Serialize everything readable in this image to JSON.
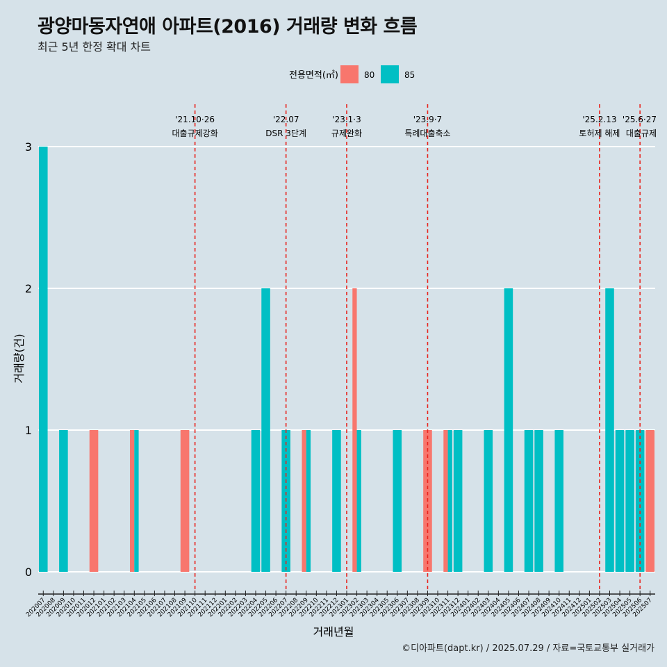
{
  "title": "광양마동자연애 아파트(2016) 거래량 변화 흐름",
  "subtitle": "최근 5년 한정 확대 차트",
  "caption": "©디아파트(dapt.kr) / 2025.07.29 / 자료=국토교통부 실거래가",
  "colors": {
    "80": "#f8766d",
    "85": "#00bfc4",
    "background": "#d6e2e9",
    "vline": "#e8251f"
  },
  "chart_data": {
    "type": "bar",
    "xlabel": "거래년월",
    "ylabel": "거래량(건)",
    "ylim": [
      0,
      3
    ],
    "yticks": [
      0,
      1,
      2,
      3
    ],
    "grid": true,
    "legend": {
      "title": "전용면적(㎡)",
      "position": "top",
      "entries": [
        "80",
        "85"
      ]
    },
    "categories": [
      "202007",
      "202008",
      "202009",
      "202010",
      "202011",
      "202012",
      "202101",
      "202102",
      "202103",
      "202104",
      "202105",
      "202106",
      "202107",
      "202108",
      "202109",
      "202110",
      "202111",
      "202112",
      "202201",
      "202202",
      "202203",
      "202204",
      "202205",
      "202206",
      "202207",
      "202208",
      "202209",
      "202210",
      "202211",
      "202212",
      "202301",
      "202302",
      "202303",
      "202304",
      "202305",
      "202306",
      "202307",
      "202308",
      "202309",
      "202310",
      "202311",
      "202312",
      "202401",
      "202402",
      "202403",
      "202404",
      "202405",
      "202406",
      "202407",
      "202408",
      "202409",
      "202410",
      "202411",
      "202412",
      "202501",
      "202502",
      "202503",
      "202504",
      "202505",
      "202506",
      "202507"
    ],
    "series": [
      {
        "name": "80",
        "values": [
          0,
          0,
          0,
          0,
          0,
          1,
          0,
          0,
          0,
          1,
          0,
          0,
          0,
          0,
          1,
          0,
          0,
          0,
          0,
          0,
          0,
          0,
          0,
          0,
          0,
          0,
          1,
          0,
          0,
          0,
          0,
          2,
          0,
          0,
          0,
          0,
          0,
          0,
          1,
          0,
          1,
          0,
          0,
          0,
          0,
          0,
          0,
          0,
          0,
          0,
          0,
          0,
          0,
          0,
          0,
          0,
          0,
          0,
          0,
          0,
          1
        ]
      },
      {
        "name": "85",
        "values": [
          3,
          0,
          1,
          0,
          0,
          0,
          0,
          0,
          0,
          1,
          0,
          0,
          0,
          0,
          0,
          0,
          0,
          0,
          0,
          0,
          0,
          1,
          2,
          0,
          1,
          0,
          1,
          0,
          0,
          1,
          0,
          1,
          0,
          0,
          0,
          1,
          0,
          0,
          0,
          0,
          1,
          1,
          0,
          0,
          1,
          0,
          2,
          0,
          1,
          1,
          0,
          1,
          0,
          0,
          0,
          0,
          2,
          1,
          1,
          1,
          0
        ]
      }
    ],
    "annotations": [
      {
        "x": "202110",
        "date": "'21.10·26",
        "label": "대출규제강화"
      },
      {
        "x": "202207",
        "date": "'22.07",
        "label": "DSR 3단계"
      },
      {
        "x": "202301",
        "date": "'23.1·3",
        "label": "규제완화"
      },
      {
        "x": "202309",
        "date": "'23.9·7",
        "label": "특례대출축소"
      },
      {
        "x": "202502",
        "date": "'25.2.13",
        "label": "토허제 해제"
      },
      {
        "x": "202506",
        "date": "'25.6·27",
        "label": "대출규제"
      }
    ]
  }
}
